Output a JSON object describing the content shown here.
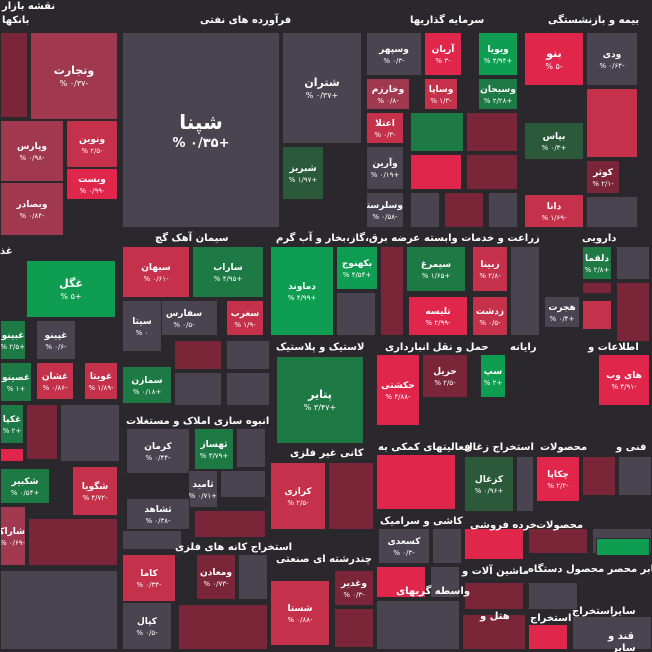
{
  "colors": {
    "strong_green": "#0f9d52",
    "green": "#1e7a45",
    "dark_green": "#2a5a3a",
    "neutral": "#4a4450",
    "light_red": "#a0394f",
    "red": "#c5304a",
    "strong_red": "#e0264a",
    "dark_red": "#7a2638"
  },
  "sectors": [
    {
      "id": "naqsheh",
      "label": "نقشه بازار"
    },
    {
      "id": "banks",
      "label": "بانکها"
    },
    {
      "id": "oil",
      "label": "فرآورده های نفتی"
    },
    {
      "id": "invest",
      "label": "سرمایه گذاریها"
    },
    {
      "id": "insurance",
      "label": "بیمه و بازنشستگی"
    },
    {
      "id": "cement",
      "label": "سیمان آهک گچ"
    },
    {
      "id": "electric",
      "label": "عرضه برق،گاز،بخار و آب گرم"
    },
    {
      "id": "agri",
      "label": "زراعت و خدمات وابسته"
    },
    {
      "id": "pharma",
      "label": "دارویی"
    },
    {
      "id": "plastic",
      "label": "لاستیک و پلاستیک"
    },
    {
      "id": "transport",
      "label": "حمل و نقل انبارداری"
    },
    {
      "id": "computer",
      "label": "رایانه"
    },
    {
      "id": "info",
      "label": "اطلاعات و"
    },
    {
      "id": "realestate",
      "label": "انبوه سازی املاک و مستغلات"
    },
    {
      "id": "nonmetal",
      "label": "کانی غیر فلزی"
    },
    {
      "id": "support",
      "label": "فعالیتهای کمکی به"
    },
    {
      "id": "coal",
      "label": "استخراج زغال"
    },
    {
      "id": "products",
      "label": "محصولات"
    },
    {
      "id": "tech",
      "label": "فنی و"
    },
    {
      "id": "tile",
      "label": "کاشی و سرامیک"
    },
    {
      "id": "wood",
      "label": "خرده فروشی"
    },
    {
      "id": "metalore",
      "label": "استخراج کانه های فلزی"
    },
    {
      "id": "multi",
      "label": "چندرشته ای صنعتی"
    },
    {
      "id": "machine",
      "label": "ماشین آلات و"
    },
    {
      "id": "products2",
      "label": "محصولات"
    },
    {
      "id": "devices",
      "label": "محصولات مخابر محصر محصول دستگاه"
    },
    {
      "id": "brokers",
      "label": "واسطه گریهای"
    },
    {
      "id": "hotel",
      "label": "هتل و"
    },
    {
      "id": "extract",
      "label": "استخراج"
    },
    {
      "id": "extract2",
      "label": "استخراج"
    },
    {
      "id": "other",
      "label": "سایر"
    },
    {
      "id": "sugar",
      "label": "قند و"
    },
    {
      "id": "other2",
      "label": "سایر"
    },
    {
      "id": "ghaz",
      "label": "غذ"
    }
  ],
  "tiles": [
    {
      "sym": "شپنا",
      "pct": "+۰/۳۵ %",
      "c": "neutral",
      "cls": "big"
    },
    {
      "sym": "شتران",
      "pct": "+۰/۳۷ %",
      "c": "neutral",
      "cls": "mid"
    },
    {
      "sym": "شبریز",
      "pct": "+۱/۹۷ %",
      "c": "dark_green",
      "cls": ""
    },
    {
      "sym": "وتجارت",
      "pct": "-۰/۳۷ %",
      "c": "light_red",
      "cls": "mid"
    },
    {
      "sym": "ونوین",
      "pct": "-۲/۵ %",
      "c": "red",
      "cls": ""
    },
    {
      "sym": "وپارس",
      "pct": "-۰/۹۸ %",
      "c": "light_red",
      "cls": ""
    },
    {
      "sym": "وبست",
      "pct": "-۰/۹۹ %",
      "c": "strong_red",
      "cls": ""
    },
    {
      "sym": "وبصادر",
      "pct": "-۰/۸۴ %",
      "c": "light_red",
      "cls": ""
    },
    {
      "sym": "وسپهر",
      "pct": "-۰/۳ %",
      "c": "neutral",
      "cls": ""
    },
    {
      "sym": "آریان",
      "pct": "-۳ %",
      "c": "strong_red",
      "cls": ""
    },
    {
      "sym": "ویویا",
      "pct": "+۴/۹۴ %",
      "c": "strong_green",
      "cls": ""
    },
    {
      "sym": "وخارزم",
      "pct": "-۰/۸ %",
      "c": "light_red",
      "cls": ""
    },
    {
      "sym": "وساپا",
      "pct": "-۱/۳ %",
      "c": "red",
      "cls": ""
    },
    {
      "sym": "وسبحان",
      "pct": "+۲/۲۸ %",
      "c": "green",
      "cls": ""
    },
    {
      "sym": "اعتلا",
      "pct": "-۰/۳ %",
      "c": "red",
      "cls": ""
    },
    {
      "sym": "وآرین",
      "pct": "+۰/۱۹ %",
      "c": "neutral",
      "cls": ""
    },
    {
      "sym": "وسلرستا",
      "pct": "-۰/۵۸ %",
      "c": "neutral",
      "cls": ""
    },
    {
      "sym": "بنو",
      "pct": "-۵ %",
      "c": "strong_red",
      "cls": "mid"
    },
    {
      "sym": "ودی",
      "pct": "-۰/۶۴ %",
      "c": "neutral",
      "cls": ""
    },
    {
      "sym": "بپاس",
      "pct": "+۰/۳ %",
      "c": "dark_green",
      "cls": ""
    },
    {
      "sym": "کوثر",
      "pct": "-۲/۱ %",
      "c": "dark_red",
      "cls": ""
    },
    {
      "sym": "دانا",
      "pct": "-۱/۶۹ %",
      "c": "red",
      "cls": ""
    },
    {
      "sym": "سبهان",
      "pct": "-۰/۶۱ %",
      "c": "red",
      "cls": ""
    },
    {
      "sym": "ساراب",
      "pct": "+۴/۹۵ %",
      "c": "green",
      "cls": ""
    },
    {
      "sym": "سفارس",
      "pct": "-۰/۵ %",
      "c": "neutral",
      "cls": ""
    },
    {
      "sym": "سغرب",
      "pct": "-۱/۹ %",
      "c": "red",
      "cls": ""
    },
    {
      "sym": "سیتا",
      "pct": "۰ %",
      "c": "neutral",
      "cls": ""
    },
    {
      "sym": "سمازن",
      "pct": "+۰/۱۸ %",
      "c": "green",
      "cls": ""
    },
    {
      "sym": "غگل",
      "pct": "+۵ %",
      "c": "strong_green",
      "cls": "mid"
    },
    {
      "sym": "غبینو",
      "pct": "+۲/۵ %",
      "c": "green",
      "cls": ""
    },
    {
      "sym": "غپینو",
      "pct": "-۰/۶ %",
      "c": "neutral",
      "cls": ""
    },
    {
      "sym": "غشان",
      "pct": "-۰/۸۶ %",
      "c": "red",
      "cls": ""
    },
    {
      "sym": "غویتا",
      "pct": "-۱/۸۹ %",
      "c": "red",
      "cls": ""
    },
    {
      "sym": "غصینو",
      "pct": "+۱ %",
      "c": "green",
      "cls": ""
    },
    {
      "sym": "غکپا",
      "pct": "+۲ %",
      "c": "green",
      "cls": ""
    },
    {
      "sym": "دماوند",
      "pct": "+۴/۹۹ %",
      "c": "strong_green",
      "cls": ""
    },
    {
      "sym": "بکهنوج",
      "pct": "+۴/۵۴ %",
      "c": "strong_green",
      "cls": ""
    },
    {
      "sym": "سیمرغ",
      "pct": "+۱/۶۵ %",
      "c": "green",
      "cls": ""
    },
    {
      "sym": "زبینا",
      "pct": "-۲/۸ %",
      "c": "red",
      "cls": ""
    },
    {
      "sym": "تلیسه",
      "pct": "-۲/۹۹ %",
      "c": "strong_red",
      "cls": ""
    },
    {
      "sym": "زدشت",
      "pct": "-۰/۵ %",
      "c": "red",
      "cls": ""
    },
    {
      "sym": "دلقما",
      "pct": "+۲/۸ %",
      "c": "green",
      "cls": ""
    },
    {
      "sym": "هجرت",
      "pct": "+۰/۴ %",
      "c": "neutral",
      "cls": ""
    },
    {
      "sym": "پتایر",
      "pct": "+۳/۴۷ %",
      "c": "green",
      "cls": "mid"
    },
    {
      "sym": "حکشتی",
      "pct": "-۴/۸۸ %",
      "c": "strong_red",
      "cls": ""
    },
    {
      "sym": "حریل",
      "pct": "-۲/۵ %",
      "c": "dark_red",
      "cls": ""
    },
    {
      "sym": "سپ",
      "pct": "+۲ %",
      "c": "strong_green",
      "cls": ""
    },
    {
      "sym": "های وب",
      "pct": "-۴/۹۱ %",
      "c": "strong_red",
      "cls": ""
    },
    {
      "sym": "کرمان",
      "pct": "-۰/۴۴ %",
      "c": "neutral",
      "cls": ""
    },
    {
      "sym": "ثهساز",
      "pct": "+۳/۷۹ %",
      "c": "green",
      "cls": ""
    },
    {
      "sym": "ثامید",
      "pct": "+۰/۷۱ %",
      "c": "neutral",
      "cls": ""
    },
    {
      "sym": "ثشاهد",
      "pct": "-۰/۳۸ %",
      "c": "neutral",
      "cls": ""
    },
    {
      "sym": "کرازی",
      "pct": "-۲/۵ %",
      "c": "red",
      "cls": ""
    },
    {
      "sym": "کزغال",
      "pct": "+۰/۹۶ %",
      "c": "dark_green",
      "cls": ""
    },
    {
      "sym": "چکاپا",
      "pct": "-۲/۲ %",
      "c": "strong_red",
      "cls": ""
    },
    {
      "sym": "کسعدی",
      "pct": "-۰/۳ %",
      "c": "neutral",
      "cls": ""
    },
    {
      "sym": "کاما",
      "pct": "-۰/۳۴ %",
      "c": "red",
      "cls": ""
    },
    {
      "sym": "ومعادن",
      "pct": "-۰/۷۳ %",
      "c": "dark_red",
      "cls": ""
    },
    {
      "sym": "کپال",
      "pct": "-۰/۵ %",
      "c": "neutral",
      "cls": ""
    },
    {
      "sym": "شستا",
      "pct": "-۰/۸۸ %",
      "c": "red",
      "cls": ""
    },
    {
      "sym": "وغدیر",
      "pct": "-۰/۳ %",
      "c": "dark_red",
      "cls": ""
    },
    {
      "sym": "شگویا",
      "pct": "-۴/۷۲ %",
      "c": "red",
      "cls": ""
    },
    {
      "sym": "شکبیر",
      "pct": "+۰/۵۴ %",
      "c": "green",
      "cls": ""
    },
    {
      "sym": "شاراک",
      "pct": "-۰/۶۹ %",
      "c": "light_red",
      "cls": ""
    }
  ]
}
